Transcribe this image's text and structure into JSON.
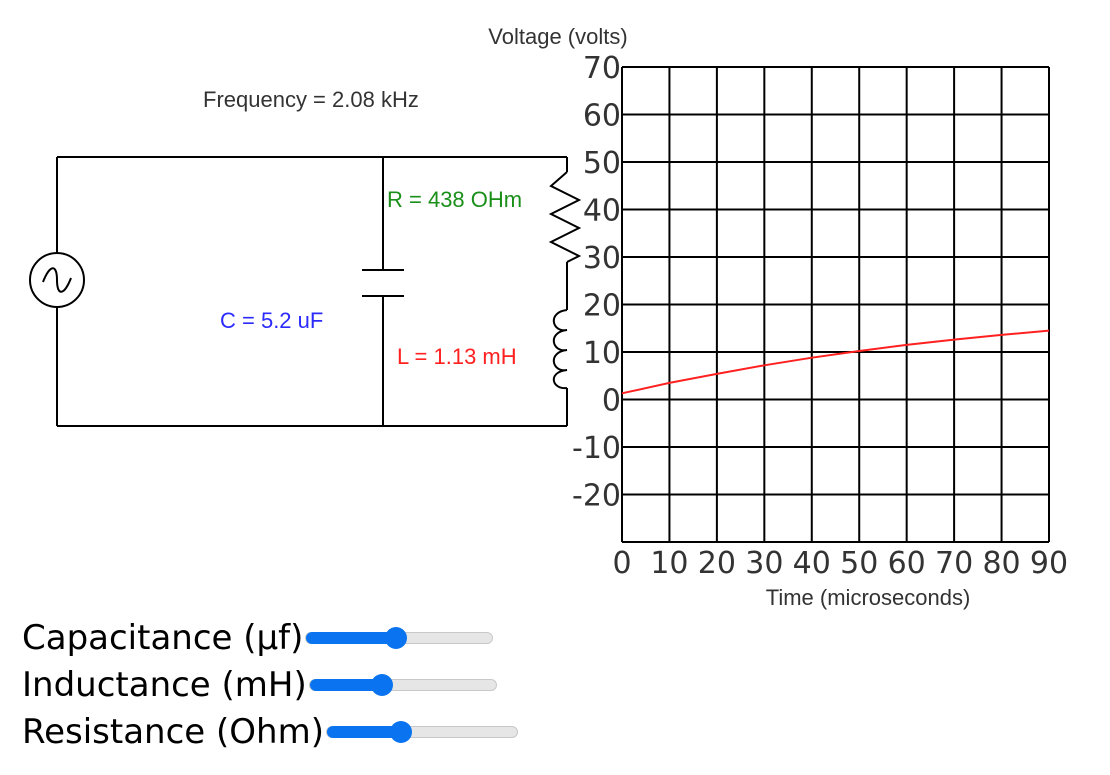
{
  "circuit": {
    "frequency_label": "Frequency = 2.08 kHz",
    "resistance_label": "R = 438 OHm",
    "capacitance_label": "C = 5.2 uF",
    "inductance_label": "L = 1.13 mH",
    "colors": {
      "resistance": "#1a8f1a",
      "capacitance": "#2b2bff",
      "inductance": "#ff2020",
      "wire": "#000000"
    }
  },
  "chart_data": {
    "type": "line",
    "title": "Voltage (volts)",
    "xlabel": "Time (microseconds)",
    "ylabel": "Voltage (volts)",
    "xlim": [
      0,
      90
    ],
    "ylim": [
      -30,
      70
    ],
    "x_ticks": [
      "0",
      "10",
      "20",
      "30",
      "40",
      "50",
      "60",
      "70",
      "80",
      "90"
    ],
    "y_ticks": [
      "70",
      "60",
      "50",
      "40",
      "30",
      "20",
      "10",
      "0",
      "-10",
      "-20"
    ],
    "grid": true,
    "series": [
      {
        "color": "#ff2020",
        "x": [
          0,
          10,
          20,
          30,
          40,
          50,
          60,
          70,
          80,
          90
        ],
        "y": [
          1.3,
          3.5,
          5.4,
          7.2,
          8.8,
          10.2,
          11.5,
          12.6,
          13.6,
          14.5
        ]
      }
    ]
  },
  "controls": {
    "sliders": [
      {
        "label": "Capacitance (µf)",
        "value": 0.48
      },
      {
        "label": "Inductance (mH)",
        "value": 0.39
      },
      {
        "label": "Resistance (Ohm)",
        "value": 0.39
      }
    ]
  }
}
